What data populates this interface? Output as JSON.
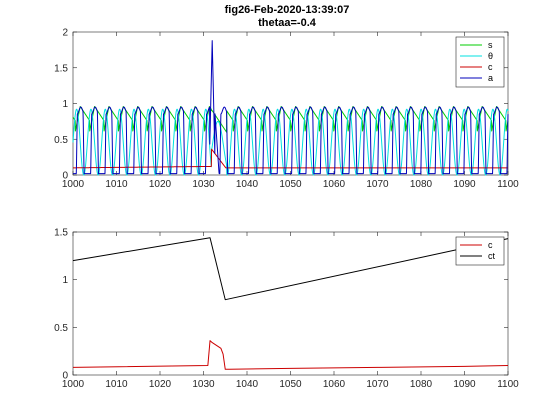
{
  "figure": {
    "title_lines": [
      "fig26-Feb-2020-13:39:07",
      "thetaa=-0.4"
    ]
  },
  "chart_data": [
    {
      "type": "line",
      "title": "",
      "xlabel": "",
      "ylabel": "",
      "xlim": [
        1000,
        1100
      ],
      "ylim": [
        0,
        2
      ],
      "xticks": [
        1000,
        1010,
        1020,
        1030,
        1040,
        1050,
        1060,
        1070,
        1080,
        1090,
        1100
      ],
      "yticks": [
        0,
        0.5,
        1,
        1.5,
        2
      ],
      "xtick_labels": [
        "1000",
        "1010",
        "1020",
        "1030",
        "1040",
        "1050",
        "1060",
        "1070",
        "1080",
        "1090",
        "1100"
      ],
      "ytick_labels": [
        "0",
        "0.5",
        "1",
        "1.5",
        "2"
      ],
      "grid": false,
      "legend_position": "top-right",
      "oscillation": {
        "period": 3.3,
        "phase_start": 1000.5,
        "burst_at": 1032,
        "burst_peak_a": 1.88,
        "burst_peak_c": 0.35
      },
      "series": [
        {
          "name": "s",
          "color": "#00cc00",
          "baseline_c": 0.1,
          "legend_label": "s",
          "x": [
            1000,
            1001,
            1002,
            1003,
            1004,
            1005,
            1006,
            1007,
            1008,
            1009,
            1010
          ],
          "y_min": 0.55,
          "y_max": 0.96
        },
        {
          "name": "θ",
          "color": "#00e0e0",
          "legend_label": "θ",
          "y_min": 0.0,
          "y_max": 0.92
        },
        {
          "name": "c",
          "color": "#cc0000",
          "legend_label": "c",
          "y_levels": {
            "before_burst": 0.12,
            "after_burst": 0.1
          }
        },
        {
          "name": "a",
          "color": "#0000bb",
          "legend_label": "a",
          "y_min": 0.0,
          "y_max": 0.92
        }
      ]
    },
    {
      "type": "line",
      "title": "",
      "xlabel": "",
      "ylabel": "",
      "xlim": [
        1000,
        1100
      ],
      "ylim": [
        0,
        1.5
      ],
      "xticks": [
        1000,
        1010,
        1020,
        1030,
        1040,
        1050,
        1060,
        1070,
        1080,
        1090,
        1100
      ],
      "yticks": [
        0,
        0.5,
        1,
        1.5
      ],
      "xtick_labels": [
        "1000",
        "1010",
        "1020",
        "1030",
        "1040",
        "1050",
        "1060",
        "1070",
        "1080",
        "1090",
        "1100"
      ],
      "ytick_labels": [
        "0",
        "0.5",
        "1",
        "1.5"
      ],
      "grid": false,
      "legend_position": "top-right",
      "series": [
        {
          "name": "c",
          "color": "#cc0000",
          "legend_label": "c",
          "x": [
            1000,
            1031,
            1031.5,
            1032,
            1033,
            1034,
            1034.5,
            1035,
            1036,
            1050,
            1070,
            1090,
            1100
          ],
          "y": [
            0.08,
            0.1,
            0.36,
            0.34,
            0.31,
            0.28,
            0.22,
            0.06,
            0.06,
            0.07,
            0.08,
            0.09,
            0.1
          ]
        },
        {
          "name": "ct",
          "color": "#000000",
          "legend_label": "ct",
          "x": [
            1000,
            1031.5,
            1035,
            1100
          ],
          "y": [
            1.2,
            1.44,
            0.79,
            1.43
          ]
        }
      ]
    }
  ]
}
